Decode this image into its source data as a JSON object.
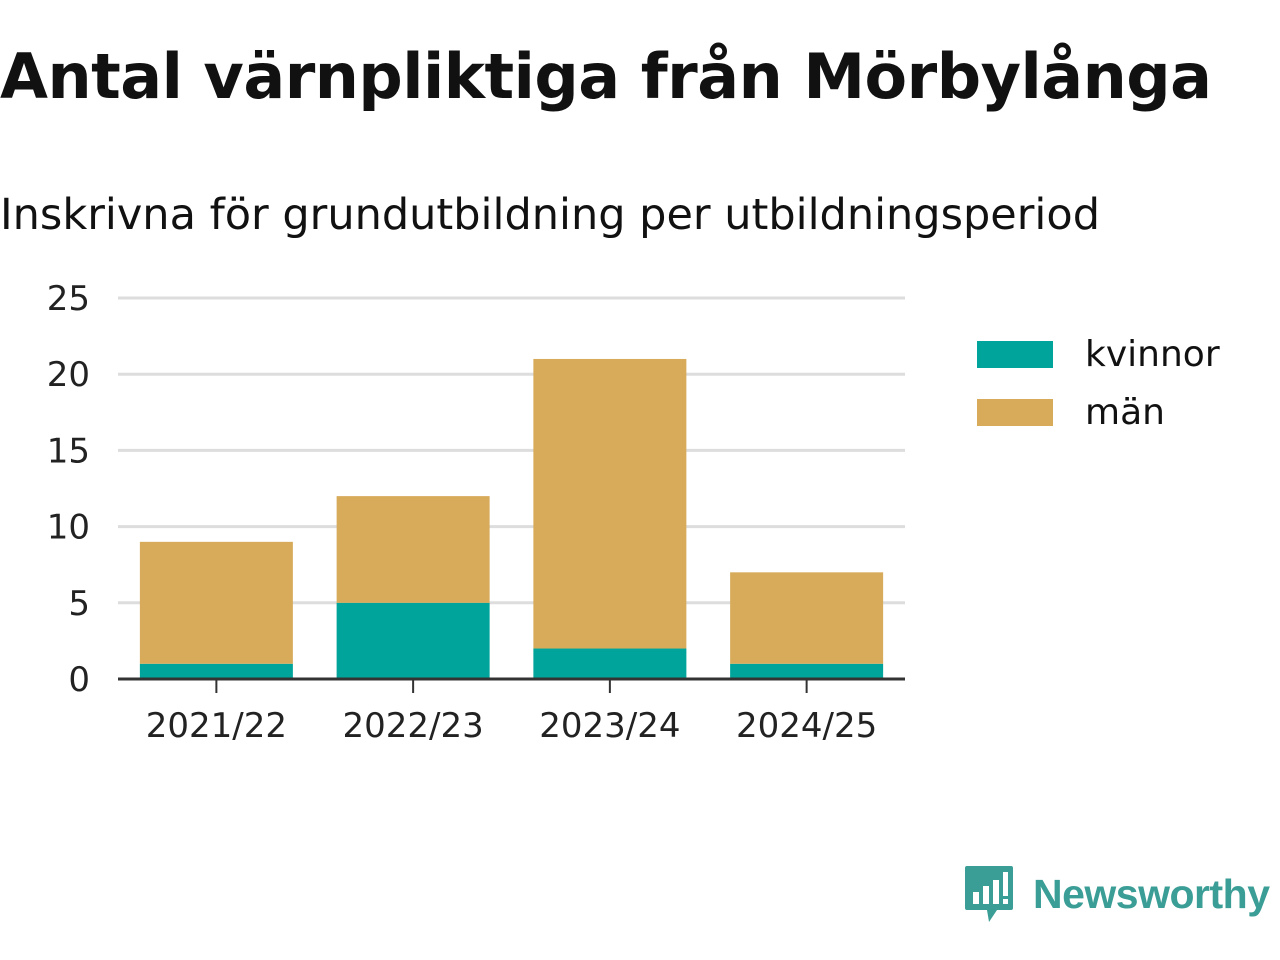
{
  "title": "Antal värnpliktiga från Mörbylånga",
  "subtitle": "Inskrivna för grundutbildning per utbildningsperiod",
  "brand": {
    "name": "Newsworthy",
    "icon": "newsworthy-logo-icon",
    "color": "#3b9e96"
  },
  "colors": {
    "kvinnor": "#00a49a",
    "man": "#d8ab5a",
    "grid": "#dddddd",
    "axis": "#333333"
  },
  "legend": {
    "kvinnor": "kvinnor",
    "man": "män"
  },
  "chart_data": {
    "type": "bar",
    "stacked": true,
    "title": "Antal värnpliktiga från Mörbylånga",
    "subtitle": "Inskrivna för grundutbildning per utbildningsperiod",
    "xlabel": "",
    "ylabel": "",
    "categories": [
      "2021/22",
      "2022/23",
      "2023/24",
      "2024/25"
    ],
    "series": [
      {
        "name": "kvinnor",
        "values": [
          1,
          5,
          2,
          1
        ],
        "color": "#00a49a"
      },
      {
        "name": "män",
        "values": [
          8,
          7,
          19,
          6
        ],
        "color": "#d8ab5a"
      }
    ],
    "ylim": [
      0,
      25
    ],
    "yticks": [
      0,
      5,
      10,
      15,
      20,
      25
    ],
    "grid": true,
    "legend_position": "right"
  }
}
